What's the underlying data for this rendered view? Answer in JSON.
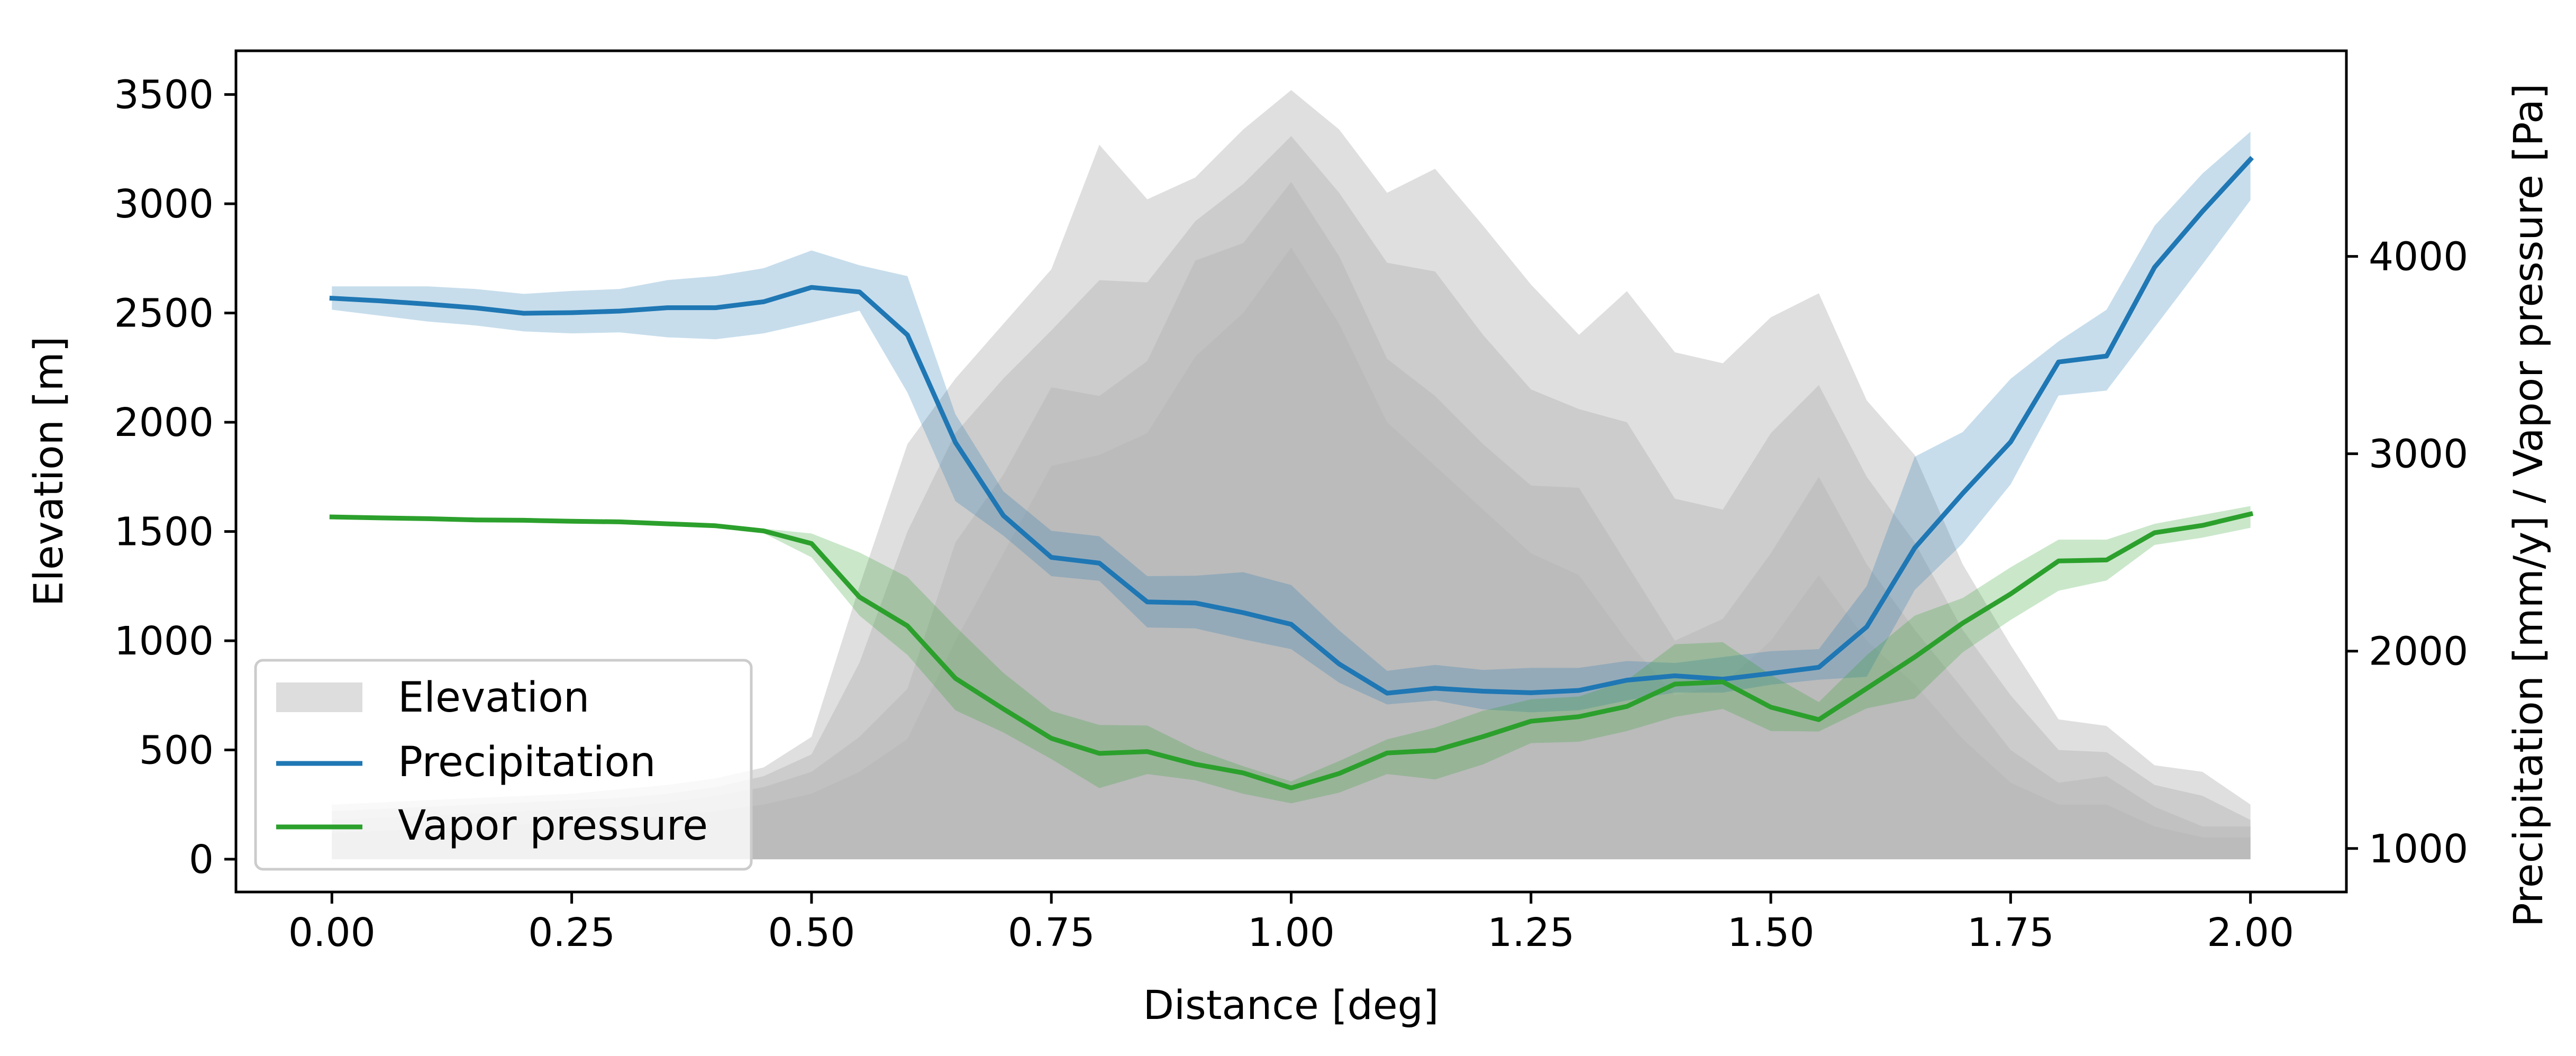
{
  "chart_data": {
    "type": "line",
    "xlabel": "Distance [deg]",
    "ylabel_left": "Elevation [m]",
    "ylabel_right": "Precipitation [mm/y] / Vapor pressure [Pa]",
    "xlim": [
      -0.1,
      2.1
    ],
    "ylim_left": [
      -150,
      3700
    ],
    "ylim_right": [
      779.6,
      5041.8
    ],
    "xticks": [
      "0.00",
      "0.25",
      "0.50",
      "0.75",
      "1.00",
      "1.25",
      "1.50",
      "1.75",
      "2.00"
    ],
    "yticks_left": [
      "0",
      "500",
      "1000",
      "1500",
      "2000",
      "2500",
      "3000",
      "3500"
    ],
    "yticks_right": [
      "1000",
      "2000",
      "3000",
      "4000"
    ],
    "legend": {
      "position": "lower-left",
      "entries": [
        "Elevation",
        "Precipitation",
        "Vapor pressure"
      ]
    },
    "colors": {
      "elevation": "#b3b3b3",
      "precipitation": "#1f77b4",
      "vapor": "#2ca02c"
    },
    "x": [
      0.0,
      0.05,
      0.1,
      0.15,
      0.2,
      0.25,
      0.3,
      0.35,
      0.4,
      0.45,
      0.5,
      0.55,
      0.6,
      0.65,
      0.7,
      0.75,
      0.8,
      0.85,
      0.9,
      0.95,
      1.0,
      1.05,
      1.1,
      1.15,
      1.2,
      1.25,
      1.3,
      1.35,
      1.4,
      1.45,
      1.5,
      1.55,
      1.6,
      1.65,
      1.7,
      1.75,
      1.8,
      1.85,
      1.9,
      1.95,
      2.0
    ],
    "elevation": {
      "name": "Elevation",
      "axis": "left",
      "max": [
        250,
        260,
        270,
        280,
        290,
        300,
        320,
        340,
        370,
        420,
        560,
        1250,
        1900,
        2200,
        2450,
        2700,
        3270,
        3020,
        3120,
        3340,
        3520,
        3340,
        3050,
        3160,
        2900,
        2630,
        2400,
        2600,
        2320,
        2270,
        2480,
        2590,
        2100,
        1850,
        1350,
        980,
        640,
        610,
        430,
        400,
        250
      ],
      "upper": [
        220,
        230,
        240,
        250,
        260,
        270,
        280,
        300,
        330,
        380,
        480,
        900,
        1500,
        1950,
        2200,
        2420,
        2650,
        2640,
        2920,
        3090,
        3310,
        3050,
        2730,
        2690,
        2400,
        2150,
        2060,
        2000,
        1650,
        1600,
        1950,
        2170,
        1750,
        1450,
        1050,
        750,
        500,
        490,
        340,
        290,
        180
      ],
      "median": [
        180,
        190,
        200,
        210,
        220,
        230,
        240,
        260,
        290,
        330,
        400,
        560,
        780,
        1450,
        1760,
        2160,
        2120,
        2280,
        2740,
        2820,
        3100,
        2760,
        2290,
        2120,
        1900,
        1710,
        1700,
        1350,
        1000,
        1100,
        1400,
        1750,
        1350,
        1050,
        780,
        500,
        350,
        380,
        240,
        150,
        150
      ],
      "lower": [
        120,
        130,
        140,
        150,
        160,
        170,
        180,
        200,
        220,
        250,
        300,
        400,
        550,
        1000,
        1400,
        1800,
        1850,
        1950,
        2300,
        2500,
        2800,
        2450,
        2000,
        1800,
        1600,
        1400,
        1300,
        1000,
        750,
        800,
        1000,
        1300,
        1000,
        800,
        550,
        350,
        250,
        250,
        150,
        100,
        100
      ]
    },
    "series": [
      {
        "name": "Precipitation",
        "axis": "right",
        "values": [
          3788,
          3775,
          3758,
          3739,
          3712,
          3715,
          3723,
          3740,
          3740,
          3770,
          3843,
          3820,
          3602,
          3057,
          2687,
          2475,
          2446,
          2249,
          2244,
          2195,
          2136,
          1935,
          1787,
          1812,
          1797,
          1789,
          1801,
          1853,
          1875,
          1858,
          1887,
          1918,
          2123,
          2523,
          2799,
          3060,
          3465,
          3495,
          3945,
          4228,
          4492
        ],
        "upper": [
          3848,
          3848,
          3848,
          3835,
          3810,
          3825,
          3835,
          3880,
          3900,
          3940,
          4030,
          3955,
          3900,
          3200,
          2810,
          2610,
          2582,
          2380,
          2382,
          2400,
          2335,
          2105,
          1900,
          1930,
          1905,
          1915,
          1915,
          1950,
          1940,
          1970,
          2000,
          2010,
          2330,
          2985,
          3110,
          3380,
          3570,
          3730,
          4155,
          4420,
          4632
        ],
        "lower": [
          3730,
          3700,
          3670,
          3650,
          3620,
          3610,
          3615,
          3590,
          3580,
          3610,
          3665,
          3725,
          3310,
          2760,
          2585,
          2380,
          2356,
          2120,
          2115,
          2060,
          2010,
          1840,
          1730,
          1750,
          1705,
          1690,
          1700,
          1750,
          1790,
          1790,
          1830,
          1855,
          1870,
          2310,
          2545,
          2845,
          3295,
          3320,
          3640,
          3960,
          4285
        ]
      },
      {
        "name": "Vapor pressure",
        "axis": "right",
        "values": [
          2680,
          2675,
          2671,
          2665,
          2663,
          2658,
          2655,
          2645,
          2635,
          2609,
          2545,
          2274,
          2128,
          1862,
          1707,
          1558,
          1482,
          1491,
          1427,
          1383,
          1307,
          1380,
          1484,
          1497,
          1567,
          1645,
          1668,
          1720,
          1833,
          1844,
          1716,
          1653,
          1811,
          1970,
          2142,
          2290,
          2457,
          2462,
          2600,
          2637,
          2695
        ],
        "upper": [
          2680,
          2675,
          2671,
          2665,
          2663,
          2658,
          2655,
          2645,
          2635,
          2621,
          2596,
          2500,
          2375,
          2125,
          1890,
          1697,
          1626,
          1623,
          1503,
          1417,
          1340,
          1443,
          1553,
          1613,
          1698,
          1756,
          1770,
          1853,
          2035,
          2045,
          1880,
          1742,
          1980,
          2180,
          2269,
          2425,
          2565,
          2565,
          2645,
          2690,
          2735
        ],
        "lower": [
          2680,
          2675,
          2671,
          2665,
          2663,
          2658,
          2655,
          2645,
          2635,
          2598,
          2475,
          2180,
          1981,
          1700,
          1588,
          1453,
          1306,
          1377,
          1346,
          1277,
          1229,
          1283,
          1377,
          1350,
          1426,
          1534,
          1541,
          1595,
          1667,
          1707,
          1595,
          1593,
          1710,
          1760,
          1994,
          2158,
          2306,
          2358,
          2538,
          2575,
          2625
        ]
      }
    ]
  }
}
